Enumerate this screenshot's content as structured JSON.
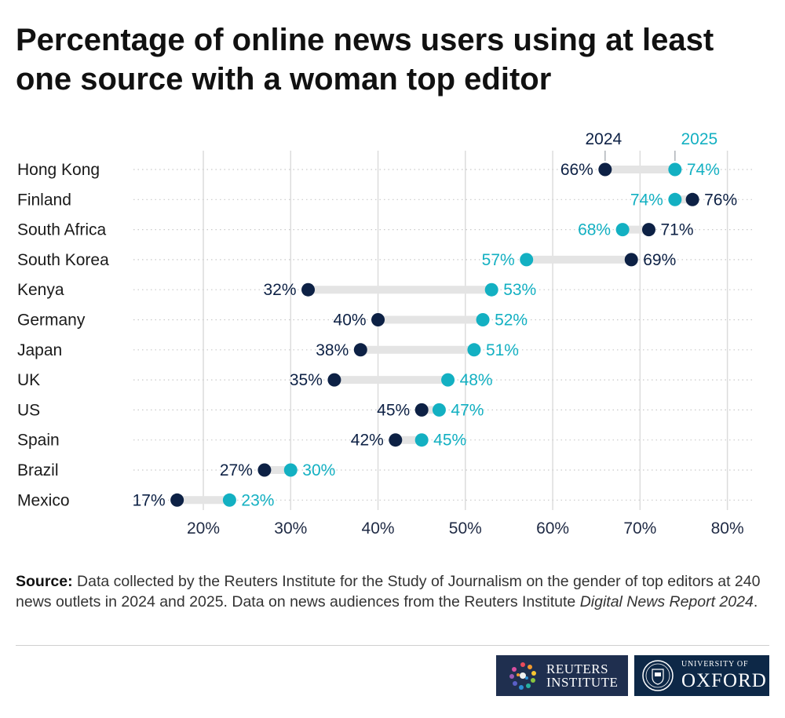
{
  "title": "Percentage of online news users using at least one source with a woman top editor",
  "chart_data": {
    "type": "dumbbell",
    "title": "Percentage of online news users using at least one source with a woman top editor",
    "xlabel": "",
    "ylabel": "",
    "xlim": [
      12,
      83
    ],
    "xticks": [
      20,
      30,
      40,
      50,
      60,
      70,
      80
    ],
    "grid": true,
    "legend_position": "top-right",
    "series": [
      {
        "name": "2024",
        "color": "#0d2145"
      },
      {
        "name": "2025",
        "color": "#13b0c2"
      }
    ],
    "categories": [
      "Hong Kong",
      "Finland",
      "South Africa",
      "South Korea",
      "Kenya",
      "Germany",
      "Japan",
      "UK",
      "US",
      "Spain",
      "Brazil",
      "Mexico"
    ],
    "values_2024": [
      66,
      76,
      71,
      69,
      32,
      40,
      38,
      35,
      45,
      42,
      27,
      17
    ],
    "values_2025": [
      74,
      74,
      68,
      57,
      53,
      52,
      51,
      48,
      47,
      45,
      30,
      23
    ]
  },
  "source": {
    "label": "Source:",
    "text": "Data collected by the Reuters Institute for the Study of Journalism on the gender of top editors at 240 news outlets in 2024 and 2025. Data on news audiences from the Reuters Institute",
    "italic": "Digital News Report 2024",
    "end": "."
  },
  "logos": {
    "reuters": [
      "REUTERS",
      "INSTITUTE"
    ],
    "oxford_small": "UNIVERSITY OF",
    "oxford_big": "OXFORD"
  },
  "colors": {
    "y2024": "#0d2145",
    "y2025": "#13b0c2",
    "connector": "#e4e4e4",
    "grid": "#dcdcdc"
  }
}
